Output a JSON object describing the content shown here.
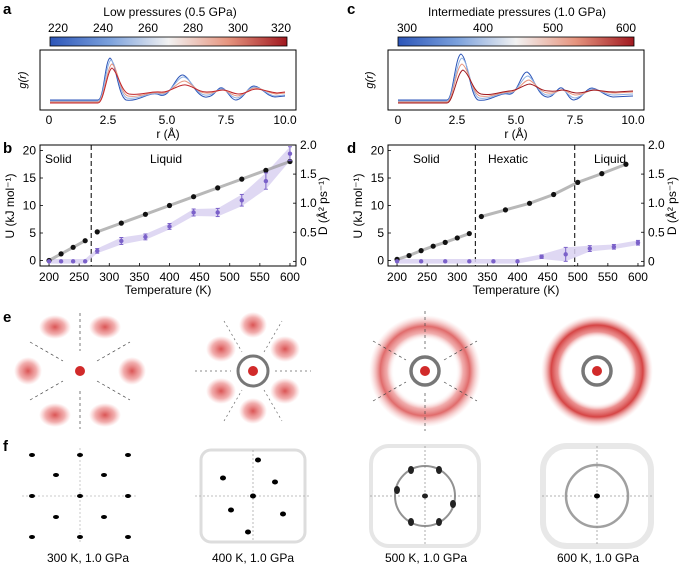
{
  "panel_labels": {
    "a": "a",
    "b": "b",
    "c": "c",
    "d": "d",
    "e": "e",
    "f": "f"
  },
  "colors": {
    "gray_curve": "#9a9a9a",
    "black_points": "#111111",
    "purple": "#7b61c9",
    "purple_band": "#d9d1f1",
    "red": "#d12a2a",
    "blue": "#2c55b8"
  },
  "panel_a": {
    "colorbar_title": "Low pressures (0.5 GPa)",
    "colorbar_ticks": [
      "220",
      "240",
      "260",
      "280",
      "300",
      "320"
    ],
    "ylabel": "g(r)",
    "xlabel": "r (Å)",
    "xticks": [
      "0",
      "2.5",
      "5.0",
      "7.5",
      "10.0"
    ]
  },
  "panel_c": {
    "colorbar_title": "Intermediate pressures (1.0  GPa)",
    "colorbar_ticks": [
      "300",
      "400",
      "500",
      "600"
    ],
    "ylabel": "g(r)",
    "xlabel": "r (Å)",
    "xticks": [
      "0",
      "2.5",
      "5.0",
      "7.5",
      "10.0"
    ]
  },
  "panel_b": {
    "region_labels": [
      "Solid",
      "Liquid"
    ],
    "phase_boundaries": [
      270
    ],
    "ylabel_left": "U (kJ mol⁻¹)",
    "ylabel_right": "D (Å² ps⁻¹)",
    "xlabel": "Temperature (K)",
    "xticks": [
      "200",
      "250",
      "300",
      "350",
      "400",
      "450",
      "500",
      "550",
      "600"
    ],
    "yticks_left": [
      "0",
      "5",
      "10",
      "15",
      "20"
    ],
    "yticks_right": [
      "0",
      "0.5",
      "1.0",
      "1.5",
      "2.0"
    ]
  },
  "panel_d": {
    "region_labels": [
      "Solid",
      "Hexatic",
      "Liquid"
    ],
    "phase_boundaries": [
      330,
      495
    ],
    "ylabel_left": "U (kJ mol⁻¹)",
    "ylabel_right": "D (Å² ps⁻¹)",
    "xlabel": "Temperature (K)",
    "xticks": [
      "200",
      "250",
      "300",
      "350",
      "400",
      "450",
      "500",
      "550",
      "600"
    ],
    "yticks_left": [
      "0",
      "5",
      "10",
      "15",
      "20"
    ],
    "yticks_right": [
      "0",
      "0.5",
      "1.0",
      "1.5",
      "2.0"
    ]
  },
  "panel_f_captions": [
    "300 K, 1.0 GPa",
    "400 K, 1.0 GPa",
    "500 K, 1.0 GPa",
    "600 K, 1.0 GPa"
  ],
  "chart_data": [
    {
      "id": "b",
      "type": "scatter",
      "xlabel": "Temperature (K)",
      "ylabel": "U (kJ mol⁻¹)",
      "y2label": "D (Å² ps⁻¹)",
      "xlim": [
        185,
        610
      ],
      "ylim": [
        -1,
        21
      ],
      "y2lim": [
        -0.08,
        2.0
      ],
      "series": [
        {
          "name": "U",
          "axis": "left",
          "x": [
            200,
            220,
            240,
            260,
            280,
            320,
            360,
            400,
            440,
            480,
            520,
            560,
            600
          ],
          "y": [
            0,
            1.2,
            2.4,
            3.6,
            5.2,
            6.8,
            8.4,
            10.0,
            11.6,
            13.2,
            14.8,
            16.4,
            18.0
          ]
        },
        {
          "name": "D",
          "axis": "right",
          "x": [
            200,
            220,
            240,
            260,
            280,
            320,
            360,
            400,
            440,
            480,
            520,
            560,
            600
          ],
          "y": [
            0,
            0,
            0,
            0,
            0.18,
            0.35,
            0.42,
            0.6,
            0.84,
            0.84,
            1.05,
            1.38,
            1.85
          ],
          "err": [
            0,
            0,
            0,
            0,
            0.04,
            0.06,
            0.05,
            0.05,
            0.06,
            0.07,
            0.1,
            0.14,
            0.12
          ]
        }
      ]
    },
    {
      "id": "d",
      "type": "scatter",
      "xlabel": "Temperature (K)",
      "ylabel": "U (kJ mol⁻¹)",
      "y2label": "D (Å² ps⁻¹)",
      "xlim": [
        185,
        610
      ],
      "ylim": [
        -1,
        21
      ],
      "y2lim": [
        -0.08,
        2.0
      ],
      "series": [
        {
          "name": "U",
          "axis": "left",
          "x": [
            200,
            220,
            240,
            260,
            280,
            300,
            320,
            340,
            380,
            420,
            460,
            500,
            540,
            580
          ],
          "y": [
            0.2,
            0.9,
            1.8,
            2.6,
            3.3,
            4.1,
            4.9,
            8.0,
            9.2,
            10.4,
            12.0,
            14.2,
            15.8,
            17.5
          ]
        },
        {
          "name": "D",
          "axis": "right",
          "x": [
            200,
            240,
            280,
            320,
            360,
            400,
            440,
            480,
            520,
            560,
            600
          ],
          "y": [
            0,
            0,
            0,
            0,
            0,
            0,
            0.08,
            0.12,
            0.22,
            0.25,
            0.32
          ],
          "err": [
            0,
            0,
            0,
            0,
            0,
            0,
            0.03,
            0.12,
            0.05,
            0.04,
            0.04
          ]
        }
      ]
    }
  ]
}
